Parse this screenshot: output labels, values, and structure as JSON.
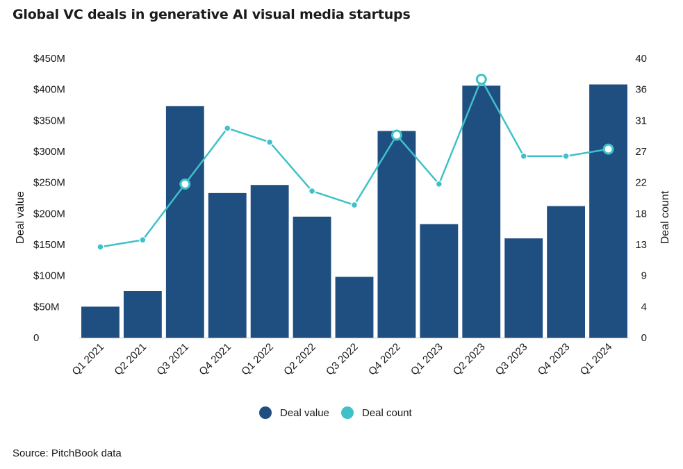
{
  "chart_data": {
    "type": "bar",
    "title": "Global VC deals in generative AI visual media startups",
    "categories": [
      "Q1 2021",
      "Q2 2021",
      "Q3 2021",
      "Q4 2021",
      "Q1 2022",
      "Q2 2022",
      "Q3 2022",
      "Q4 2022",
      "Q1 2023",
      "Q2 2023",
      "Q3 2023",
      "Q4 2023",
      "Q1 2024"
    ],
    "series": [
      {
        "name": "Deal value",
        "type": "bar",
        "axis": "left",
        "color": "#1f4e80",
        "values": [
          50,
          75,
          373,
          233,
          246,
          195,
          98,
          333,
          183,
          406,
          160,
          212,
          408
        ]
      },
      {
        "name": "Deal count",
        "type": "line",
        "axis": "right",
        "color": "#3fc1c9",
        "values": [
          13,
          14,
          22,
          30,
          28,
          21,
          19,
          29,
          22,
          37,
          26,
          26,
          27
        ]
      }
    ],
    "ylabel": "Deal value",
    "y2label": "Deal count",
    "ylim": [
      0,
      450
    ],
    "y2lim": [
      0,
      40
    ],
    "yticks": [
      "0",
      "$50M",
      "$100M",
      "$150M",
      "$200M",
      "$250M",
      "$300M",
      "$350M",
      "$400M",
      "$450M"
    ],
    "y2ticks": [
      "0",
      "4",
      "9",
      "13",
      "18",
      "22",
      "27",
      "31",
      "36",
      "40"
    ],
    "highlighted_points": [
      2,
      7,
      9,
      12
    ],
    "legend_position": "bottom-center",
    "grid": false,
    "source": "Source: PitchBook data"
  }
}
